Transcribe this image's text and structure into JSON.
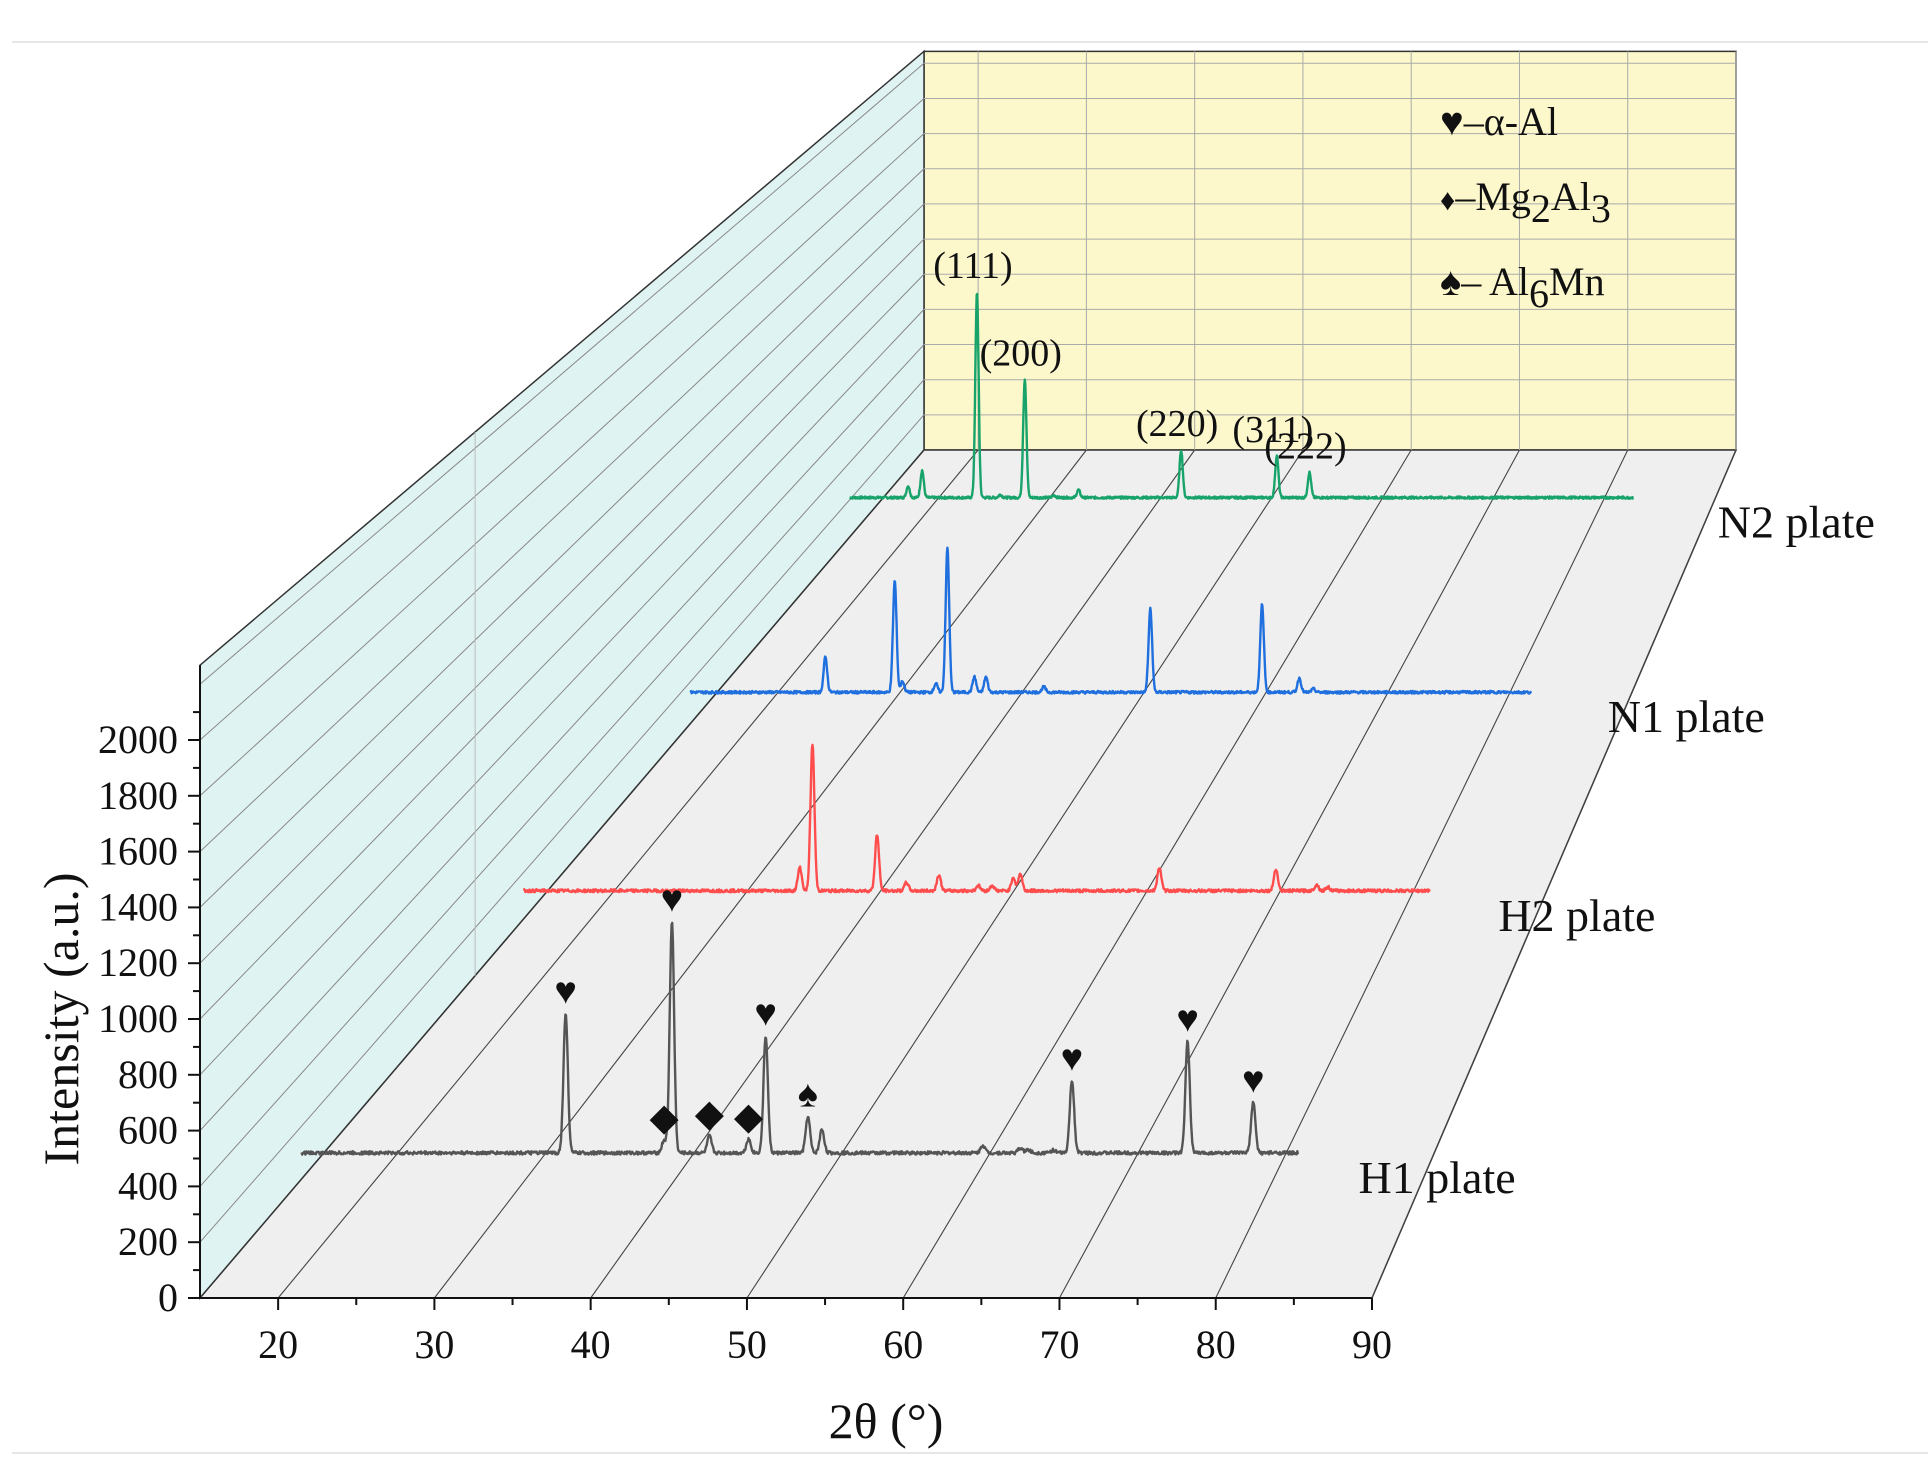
{
  "chart_data": {
    "type": "line",
    "chart_style": "3d-waterfall",
    "xlabel": "2θ (°)",
    "ylabel": "Intensity (a.u.)",
    "xlim": [
      15,
      90
    ],
    "ylim": [
      0,
      2100
    ],
    "x_ticks": [
      "20",
      "30",
      "40",
      "50",
      "60",
      "70",
      "80",
      "90"
    ],
    "y_ticks": [
      "0",
      "200",
      "400",
      "600",
      "800",
      "1000",
      "1200",
      "1400",
      "1600",
      "1800",
      "2000"
    ],
    "grid": true,
    "colors": {
      "back_wall": "#fcf8cc",
      "side_wall": "#dff4f2",
      "floor": "#efefef",
      "H1": "#555555",
      "H2": "#ff4d4d",
      "N1": "#1f6fde",
      "N2": "#18a36b"
    },
    "series": [
      {
        "name": "H1 plate",
        "baseline": 520,
        "peaks": [
          {
            "x": 38.4,
            "h": 500
          },
          {
            "x": 44.7,
            "h": 45
          },
          {
            "x": 45.2,
            "h": 830
          },
          {
            "x": 47.6,
            "h": 60
          },
          {
            "x": 50.1,
            "h": 50
          },
          {
            "x": 51.2,
            "h": 420
          },
          {
            "x": 53.9,
            "h": 130
          },
          {
            "x": 54.8,
            "h": 85
          },
          {
            "x": 65.1,
            "h": 28
          },
          {
            "x": 67.5,
            "h": 18
          },
          {
            "x": 68.0,
            "h": 12
          },
          {
            "x": 69.6,
            "h": 10
          },
          {
            "x": 70.8,
            "h": 260
          },
          {
            "x": 78.2,
            "h": 400
          },
          {
            "x": 82.4,
            "h": 180
          }
        ]
      },
      {
        "name": "H2 plate",
        "baseline": 520,
        "peaks": [
          {
            "x": 40.7,
            "h": 95
          },
          {
            "x": 41.6,
            "h": 600
          },
          {
            "x": 46.2,
            "h": 230
          },
          {
            "x": 48.3,
            "h": 35
          },
          {
            "x": 50.6,
            "h": 65
          },
          {
            "x": 53.4,
            "h": 22
          },
          {
            "x": 54.4,
            "h": 22
          },
          {
            "x": 55.9,
            "h": 55
          },
          {
            "x": 56.4,
            "h": 70
          },
          {
            "x": 66.3,
            "h": 95
          },
          {
            "x": 74.6,
            "h": 90
          },
          {
            "x": 77.5,
            "h": 25
          },
          {
            "x": 78.3,
            "h": 15
          }
        ]
      },
      {
        "name": "N1 plate",
        "baseline": 520,
        "peaks": [
          {
            "x": 31.0,
            "h": 160
          },
          {
            "x": 36.4,
            "h": 510
          },
          {
            "x": 37.0,
            "h": 50
          },
          {
            "x": 39.6,
            "h": 40
          },
          {
            "x": 40.5,
            "h": 660
          },
          {
            "x": 42.6,
            "h": 70
          },
          {
            "x": 43.5,
            "h": 70
          },
          {
            "x": 48.0,
            "h": 25
          },
          {
            "x": 56.3,
            "h": 380
          },
          {
            "x": 65.0,
            "h": 400
          },
          {
            "x": 67.9,
            "h": 65
          },
          {
            "x": 69.0,
            "h": 15
          }
        ]
      },
      {
        "name": "N2 plate",
        "baseline": 520,
        "peaks": [
          {
            "x": 24.5,
            "h": 60
          },
          {
            "x": 25.7,
            "h": 140
          },
          {
            "x": 30.4,
            "h": 1060
          },
          {
            "x": 32.4,
            "h": 15
          },
          {
            "x": 34.5,
            "h": 610
          },
          {
            "x": 37.0,
            "h": 12
          },
          {
            "x": 39.1,
            "h": 40
          },
          {
            "x": 47.9,
            "h": 245
          },
          {
            "x": 56.1,
            "h": 215
          },
          {
            "x": 58.9,
            "h": 130
          }
        ]
      }
    ],
    "annotations": {
      "hkl": [
        {
          "series": "N2 plate",
          "x": 30.4,
          "label": "(111)"
        },
        {
          "series": "N2 plate",
          "x": 34.5,
          "label": "(200)"
        },
        {
          "series": "N2 plate",
          "x": 47.9,
          "label": "(220)"
        },
        {
          "series": "N2 plate",
          "x": 56.1,
          "label": "(311)"
        },
        {
          "series": "N2 plate",
          "x": 58.9,
          "label": "(222)"
        }
      ],
      "phase_markers": [
        {
          "x": 38.4,
          "symbol": "♥"
        },
        {
          "x": 44.7,
          "symbol": "◆"
        },
        {
          "x": 45.2,
          "symbol": "♥"
        },
        {
          "x": 47.6,
          "symbol": "◆"
        },
        {
          "x": 50.1,
          "symbol": "◆"
        },
        {
          "x": 51.2,
          "symbol": "♥"
        },
        {
          "x": 53.9,
          "symbol": "♠"
        },
        {
          "x": 70.8,
          "symbol": "♥"
        },
        {
          "x": 78.2,
          "symbol": "♥"
        },
        {
          "x": 82.4,
          "symbol": "♥"
        }
      ]
    },
    "legend": {
      "placement": "top-right",
      "entries": [
        {
          "symbol": "♥",
          "text": "–α-Al"
        },
        {
          "symbol": "♦",
          "text": "–Mg",
          "sub1": "2",
          "mid": "Al",
          "sub2": "3"
        },
        {
          "symbol": "♠",
          "text": "– Al",
          "sub1": "6",
          "mid": "Mn"
        }
      ]
    }
  }
}
